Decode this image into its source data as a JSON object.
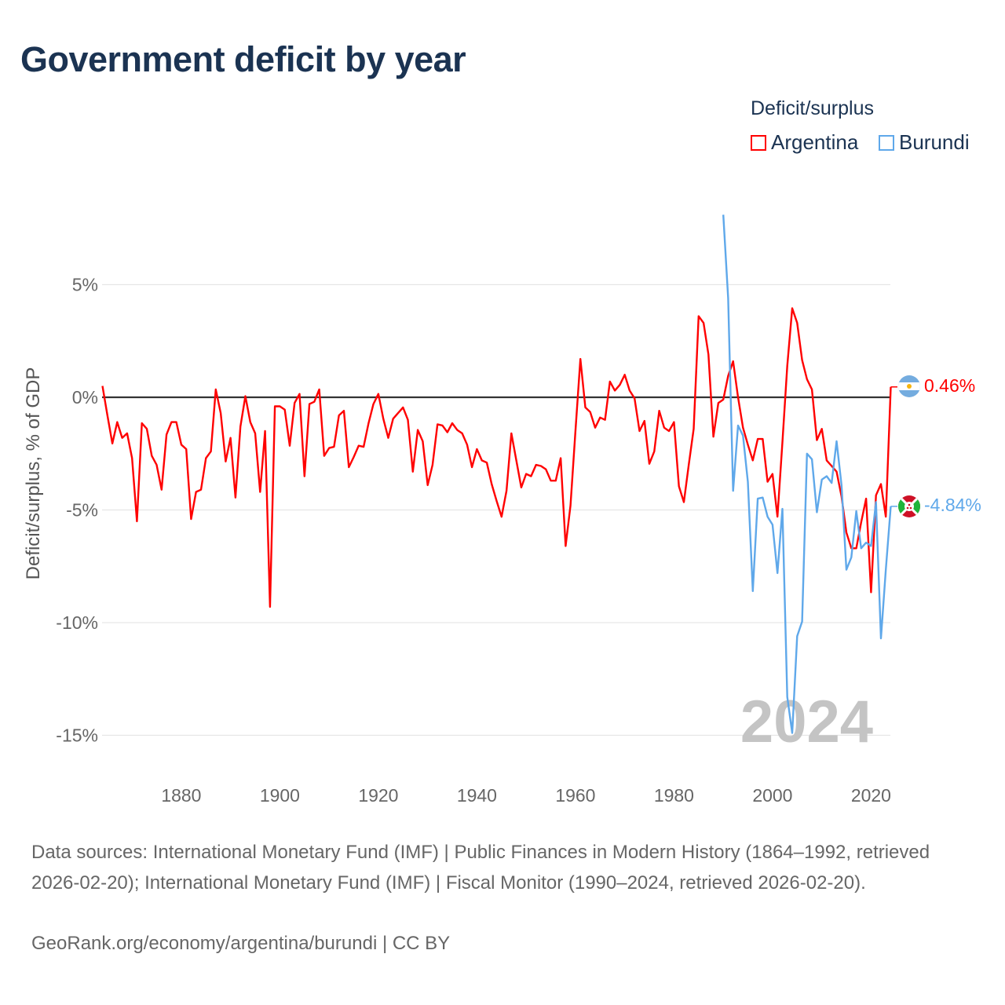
{
  "title": "Government deficit by year",
  "legend": {
    "title": "Deficit/surplus",
    "items": [
      {
        "label": "Argentina",
        "color": "#ff0000"
      },
      {
        "label": "Burundi",
        "color": "#5fa8ea"
      }
    ]
  },
  "chart_data": {
    "type": "line",
    "title": "Government deficit by year",
    "xlabel": "",
    "ylabel": "Deficit/surplus, % of GDP",
    "xlim": [
      1864,
      2024
    ],
    "ylim": [
      -16.7,
      8.5
    ],
    "x_ticks": [
      "1880",
      "1900",
      "1920",
      "1940",
      "1960",
      "1980",
      "2000",
      "2020"
    ],
    "y_ticks": [
      {
        "value": 5,
        "label": "5%"
      },
      {
        "value": 0,
        "label": "0%"
      },
      {
        "value": -5,
        "label": "-5%"
      },
      {
        "value": -10,
        "label": "-10%"
      },
      {
        "value": -15,
        "label": "-15%"
      }
    ],
    "year_watermark": "2024",
    "series": [
      {
        "name": "Argentina",
        "color": "#ff0000",
        "start_year": 1864,
        "end_label": "0.46%",
        "values": [
          0.5,
          -0.8,
          -2.05,
          -1.1,
          -1.8,
          -1.6,
          -2.7,
          -5.5,
          -1.15,
          -1.4,
          -2.6,
          -3.0,
          -4.1,
          -1.65,
          -1.1,
          -1.1,
          -2.1,
          -2.3,
          -5.4,
          -4.2,
          -4.1,
          -2.7,
          -2.4,
          0.35,
          -0.7,
          -2.85,
          -1.8,
          -4.45,
          -1.3,
          0.05,
          -1.1,
          -1.6,
          -4.2,
          -1.5,
          -9.3,
          -0.4,
          -0.4,
          -0.55,
          -2.15,
          -0.25,
          0.15,
          -3.5,
          -0.3,
          -0.2,
          0.35,
          -2.6,
          -2.25,
          -2.2,
          -0.8,
          -0.6,
          -3.1,
          -2.65,
          -2.15,
          -2.2,
          -1.15,
          -0.3,
          0.15,
          -0.95,
          -1.8,
          -0.95,
          -0.7,
          -0.45,
          -1.0,
          -3.3,
          -1.45,
          -1.95,
          -3.9,
          -3.0,
          -1.2,
          -1.25,
          -1.55,
          -1.15,
          -1.45,
          -1.6,
          -2.1,
          -3.1,
          -2.3,
          -2.8,
          -2.9,
          -3.85,
          -4.6,
          -5.3,
          -4.15,
          -1.6,
          -2.8,
          -4.0,
          -3.4,
          -3.5,
          -3.0,
          -3.05,
          -3.2,
          -3.7,
          -3.7,
          -2.7,
          -6.6,
          -4.8,
          -1.5,
          1.7,
          -0.45,
          -0.65,
          -1.35,
          -0.9,
          -1.0,
          0.7,
          0.3,
          0.55,
          1.0,
          0.3,
          -0.05,
          -1.5,
          -1.05,
          -2.95,
          -2.4,
          -0.6,
          -1.35,
          -1.5,
          -1.1,
          -3.95,
          -4.65,
          -3.0,
          -1.4,
          3.6,
          3.3,
          1.9,
          -1.75,
          -0.25,
          -0.1,
          0.95,
          1.6,
          0.0,
          -1.35,
          -2.1,
          -2.8,
          -1.85,
          -1.85,
          -3.75,
          -3.4,
          -5.3,
          -2.0,
          1.4,
          3.95,
          3.3,
          1.65,
          0.8,
          0.35,
          -1.9,
          -1.4,
          -2.8,
          -3.05,
          -3.3,
          -4.4,
          -6.0,
          -6.7,
          -6.7,
          -5.55,
          -4.5,
          -8.65,
          -4.35,
          -3.85,
          -5.3,
          0.46
        ]
      },
      {
        "name": "Burundi",
        "color": "#5fa8ea",
        "start_year": 1990,
        "end_label": "-4.84%",
        "values": [
          8.1,
          4.4,
          -4.15,
          -1.25,
          -1.7,
          -3.75,
          -8.6,
          -4.5,
          -4.45,
          -5.3,
          -5.65,
          -7.8,
          -4.95,
          -13.3,
          -14.9,
          -10.6,
          -9.95,
          -2.5,
          -2.75,
          -5.1,
          -3.65,
          -3.5,
          -3.8,
          -1.95,
          -3.9,
          -7.65,
          -7.1,
          -5.05,
          -6.7,
          -6.45,
          -6.6,
          -4.65,
          -10.7,
          -7.65,
          -4.84
        ]
      }
    ]
  },
  "footer": {
    "sources": "Data sources: International Monetary Fund (IMF) | Public Finances in Modern History (1864–1992, retrieved 2026-02-20); International Monetary Fund (IMF) | Fiscal Monitor (1990–2024, retrieved 2026-02-20).",
    "credit": "GeoRank.org/economy/argentina/burundi | CC BY"
  }
}
